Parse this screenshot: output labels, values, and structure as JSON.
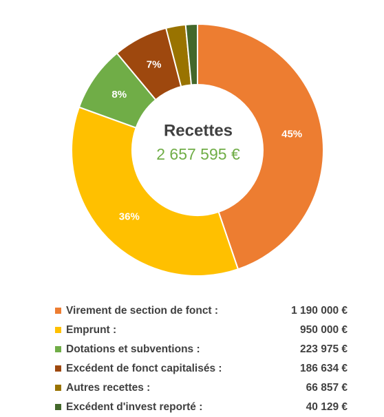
{
  "chart_data": {
    "type": "donut",
    "title": "Recettes",
    "subtitle": "2 657 595 €",
    "categories": [
      "Virement de section de fonct :",
      "Emprunt :",
      "Dotations et subventions :",
      "Excédent de fonct capitalisés :",
      "Autres recettes :",
      "Excédent d'invest reporté :"
    ],
    "values": [
      1190000,
      950000,
      223975,
      186634,
      66857,
      40129
    ],
    "value_labels": [
      "1 190 000 €",
      "950 000 €",
      "223 975 €",
      "186 634 €",
      "66 857 €",
      "40 129 €"
    ],
    "percent_values": [
      45,
      36,
      8,
      7,
      null,
      null
    ],
    "percent_labels": [
      "45%",
      "36%",
      "8%",
      "7%",
      null,
      null
    ],
    "colors": [
      "#ED7D31",
      "#FFC000",
      "#70AD47",
      "#9E480E",
      "#997300",
      "#43682B"
    ]
  }
}
